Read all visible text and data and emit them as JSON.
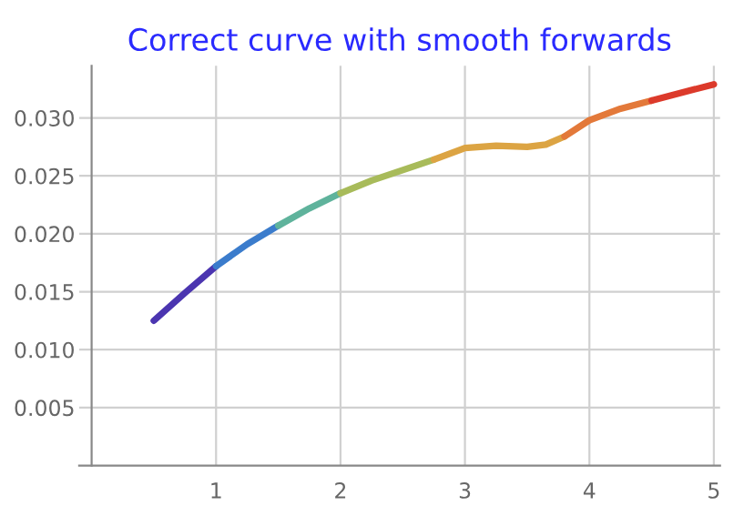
{
  "chart_data": {
    "type": "line",
    "title": "Correct curve with smooth forwards",
    "series": [
      {
        "color": "#4b35b0",
        "x": [
          0.5,
          0.75,
          1.0
        ],
        "values": [
          0.0125,
          0.0149,
          0.0172
        ]
      },
      {
        "color": "#3b7ccc",
        "x": [
          1.0,
          1.25,
          1.5
        ],
        "values": [
          0.0172,
          0.0191,
          0.0207
        ]
      },
      {
        "color": "#5fb39c",
        "x": [
          1.5,
          1.75,
          2.0
        ],
        "values": [
          0.0207,
          0.0222,
          0.0235
        ]
      },
      {
        "color": "#a8bb5a",
        "x": [
          2.0,
          2.25,
          2.5,
          2.75
        ],
        "values": [
          0.0235,
          0.0246,
          0.0255,
          0.0264
        ]
      },
      {
        "color": "#dca443",
        "x": [
          2.75,
          3.0,
          3.25,
          3.5,
          3.65,
          3.8
        ],
        "values": [
          0.0264,
          0.0274,
          0.0276,
          0.0275,
          0.0277,
          0.0284
        ]
      },
      {
        "color": "#e3793a",
        "x": [
          3.8,
          4.0,
          4.25,
          4.5
        ],
        "values": [
          0.0284,
          0.0298,
          0.0308,
          0.0315
        ]
      },
      {
        "color": "#dc3a2b",
        "x": [
          4.5,
          4.75,
          5.0
        ],
        "values": [
          0.0315,
          0.0322,
          0.0329
        ]
      }
    ],
    "xlim": [
      -0.1,
      5.05
    ],
    "ylim": [
      0,
      0.0345
    ],
    "xticks": [
      1,
      2,
      3,
      4,
      5
    ],
    "yticks": [
      {
        "value": 0.005,
        "label": "0.005"
      },
      {
        "value": 0.01,
        "label": "0.010"
      },
      {
        "value": 0.015,
        "label": "0.015"
      },
      {
        "value": 0.02,
        "label": "0.020"
      },
      {
        "value": 0.025,
        "label": "0.025"
      },
      {
        "value": 0.03,
        "label": "0.030"
      }
    ],
    "grid": true
  }
}
